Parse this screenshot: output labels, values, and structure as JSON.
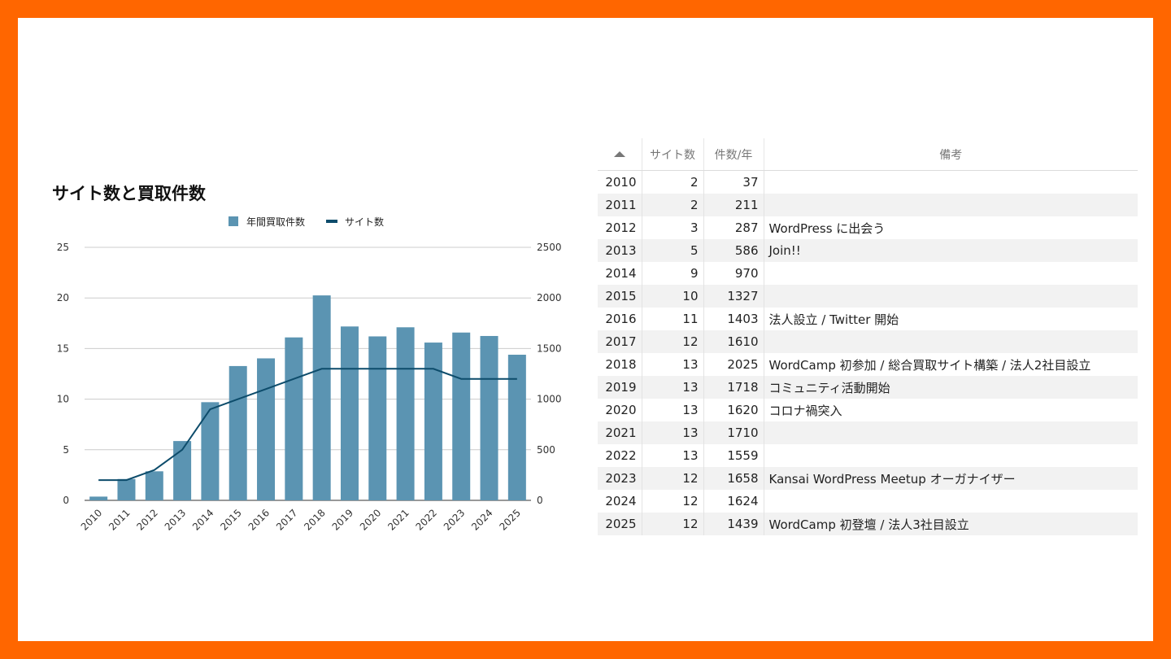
{
  "chart_data": {
    "type": "bar",
    "title": "サイト数と買取件数",
    "categories": [
      "2010",
      "2011",
      "2012",
      "2013",
      "2014",
      "2015",
      "2016",
      "2017",
      "2018",
      "2019",
      "2020",
      "2021",
      "2022",
      "2023",
      "2024",
      "2025"
    ],
    "series": [
      {
        "name": "年間買取件数",
        "type": "bar",
        "axis": "right",
        "color": "#5b94b2",
        "values": [
          37,
          211,
          287,
          586,
          970,
          1327,
          1403,
          1610,
          2025,
          1718,
          1620,
          1710,
          1559,
          1658,
          1624,
          1439
        ]
      },
      {
        "name": "サイト数",
        "type": "line",
        "axis": "left",
        "color": "#0d4c6b",
        "values": [
          2,
          2,
          3,
          5,
          9,
          10,
          11,
          12,
          13,
          13,
          13,
          13,
          13,
          12,
          12,
          12
        ]
      }
    ],
    "ylim_left": [
      0,
      25
    ],
    "ylim_right": [
      0,
      2500
    ],
    "left_ticks": [
      "0",
      "5",
      "10",
      "15",
      "20",
      "25"
    ],
    "right_ticks": [
      "0",
      "500",
      "1000",
      "1500",
      "2000",
      "2500"
    ],
    "grid": true,
    "legend_position": "top"
  },
  "table": {
    "headers": [
      "サイト数",
      "件数/年",
      "備考"
    ],
    "rows": [
      {
        "year": "2010",
        "sites": "2",
        "count": "37",
        "note": ""
      },
      {
        "year": "2011",
        "sites": "2",
        "count": "211",
        "note": ""
      },
      {
        "year": "2012",
        "sites": "3",
        "count": "287",
        "note": "WordPress に出会う"
      },
      {
        "year": "2013",
        "sites": "5",
        "count": "586",
        "note": "Join!!"
      },
      {
        "year": "2014",
        "sites": "9",
        "count": "970",
        "note": ""
      },
      {
        "year": "2015",
        "sites": "10",
        "count": "1327",
        "note": ""
      },
      {
        "year": "2016",
        "sites": "11",
        "count": "1403",
        "note": "法人設立 / Twitter 開始"
      },
      {
        "year": "2017",
        "sites": "12",
        "count": "1610",
        "note": ""
      },
      {
        "year": "2018",
        "sites": "13",
        "count": "2025",
        "note": "WordCamp 初参加 / 総合買取サイト構築 / 法人2社目設立"
      },
      {
        "year": "2019",
        "sites": "13",
        "count": "1718",
        "note": "コミュニティ活動開始"
      },
      {
        "year": "2020",
        "sites": "13",
        "count": "1620",
        "note": "コロナ禍突入"
      },
      {
        "year": "2021",
        "sites": "13",
        "count": "1710",
        "note": ""
      },
      {
        "year": "2022",
        "sites": "13",
        "count": "1559",
        "note": ""
      },
      {
        "year": "2023",
        "sites": "12",
        "count": "1658",
        "note": "Kansai WordPress Meetup オーガナイザー"
      },
      {
        "year": "2024",
        "sites": "12",
        "count": "1624",
        "note": ""
      },
      {
        "year": "2025",
        "sites": "12",
        "count": "1439",
        "note": "WordCamp 初登壇 / 法人3社目設立"
      }
    ]
  },
  "colors": {
    "frame": "#ff6600",
    "bar": "#5b94b2",
    "line": "#0d4c6b"
  }
}
